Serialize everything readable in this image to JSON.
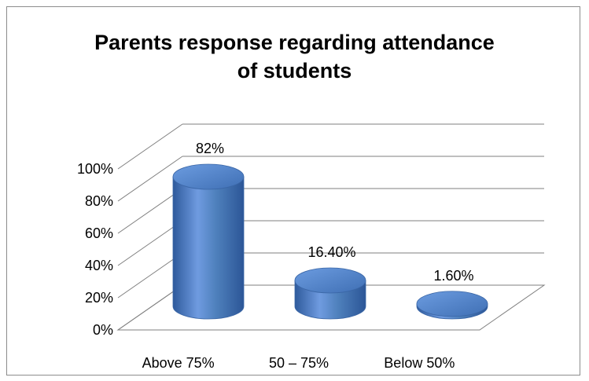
{
  "chart_data": {
    "type": "bar",
    "style": "3d-cylinder",
    "title_lines": [
      "Parents response regarding attendance",
      "of students"
    ],
    "categories": [
      "Above 75%",
      "50 – 75%",
      "Below 50%"
    ],
    "values": [
      82,
      16.4,
      1.6
    ],
    "data_labels": [
      "82%",
      "16.40%",
      "1.60%"
    ],
    "y_ticks": [
      "0%",
      "20%",
      "40%",
      "60%",
      "80%",
      "100%"
    ],
    "ylim": [
      0,
      100
    ],
    "grid": true,
    "legend": "none",
    "xlabel": "",
    "ylabel": "",
    "colors": {
      "bar_light": "#6f9be0",
      "bar_mid": "#4f81bd",
      "bar_dark": "#2c5697",
      "bar_top": "#5b8fd6",
      "grid": "#7f7f7f"
    }
  }
}
